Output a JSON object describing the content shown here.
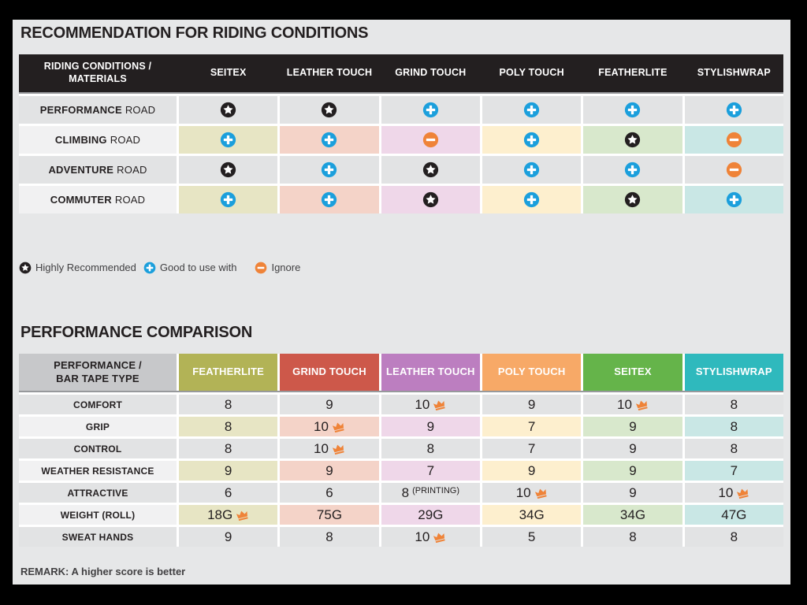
{
  "colors": {
    "page_bg": "#e6e7e8",
    "frame": "#000000",
    "header_black": "#231f20",
    "star": "#231f20",
    "plus": "#1b9fdc",
    "minus": "#ef8338",
    "crown": "#ef8338",
    "gray_row": "#e2e3e4",
    "label_light": "#f1f1f2",
    "header_gray": "#c7c8ca"
  },
  "section1": {
    "title": "RECOMMENDATION FOR RIDING CONDITIONS",
    "header_label": "RIDING CONDITIONS / MATERIALS",
    "columns": [
      {
        "label": "SEITEX",
        "tint": "#e7e5c4"
      },
      {
        "label": "LEATHER TOUCH",
        "tint": "#f4d3c8"
      },
      {
        "label": "GRIND TOUCH",
        "tint": "#efd7e9"
      },
      {
        "label": "POLY TOUCH",
        "tint": "#fdefce"
      },
      {
        "label": "FEATHERLITE",
        "tint": "#d8e8cc"
      },
      {
        "label": "STYLISHWRAP",
        "tint": "#c9e7e5"
      }
    ],
    "rows": [
      {
        "label_bold": "PERFORMANCE",
        "label_light": "ROAD",
        "cells": [
          "star",
          "star",
          "plus",
          "plus",
          "plus",
          "plus"
        ]
      },
      {
        "label_bold": "CLIMBING",
        "label_light": "ROAD",
        "cells": [
          "plus",
          "plus",
          "minus",
          "plus",
          "star",
          "minus"
        ]
      },
      {
        "label_bold": "ADVENTURE",
        "label_light": "ROAD",
        "cells": [
          "star",
          "plus",
          "star",
          "plus",
          "plus",
          "minus"
        ]
      },
      {
        "label_bold": "COMMUTER",
        "label_light": "ROAD",
        "cells": [
          "plus",
          "plus",
          "star",
          "plus",
          "star",
          "plus"
        ]
      }
    ],
    "legend": [
      {
        "icon": "star",
        "label": "Highly Recommended"
      },
      {
        "icon": "plus",
        "label": "Good to use with"
      },
      {
        "icon": "minus",
        "label": "Ignore"
      }
    ]
  },
  "section2": {
    "title": "PERFORMANCE COMPARISON",
    "header_label": "PERFORMANCE / BAR TAPE TYPE",
    "columns": [
      {
        "label": "FEATHERLITE",
        "color": "#b2b356",
        "tint": "#e7e5c4"
      },
      {
        "label": "GRIND TOUCH",
        "color": "#cd584a",
        "tint": "#f4d3c8"
      },
      {
        "label": "LEATHER TOUCH",
        "color": "#bc7ec0",
        "tint": "#efd7e9"
      },
      {
        "label": "POLY TOUCH",
        "color": "#f7a967",
        "tint": "#fdefce"
      },
      {
        "label": "SEITEX",
        "color": "#65b44a",
        "tint": "#d8e8cc"
      },
      {
        "label": "STYLISHWRAP",
        "color": "#2fb9bd",
        "tint": "#c9e7e5"
      }
    ],
    "rows": [
      {
        "label": "COMFORT",
        "values": [
          "8",
          "9",
          "10",
          "9",
          "10",
          "8"
        ],
        "crowns": [
          2,
          4
        ],
        "note_index": -1,
        "note": ""
      },
      {
        "label": "GRIP",
        "values": [
          "8",
          "10",
          "9",
          "7",
          "9",
          "8"
        ],
        "crowns": [
          1
        ],
        "note_index": -1,
        "note": ""
      },
      {
        "label": "CONTROL",
        "values": [
          "8",
          "10",
          "8",
          "7",
          "9",
          "8"
        ],
        "crowns": [
          1
        ],
        "note_index": -1,
        "note": ""
      },
      {
        "label": "WEATHER RESISTANCE",
        "values": [
          "9",
          "9",
          "7",
          "9",
          "9",
          "7"
        ],
        "crowns": [],
        "note_index": -1,
        "note": ""
      },
      {
        "label": "ATTRACTIVE",
        "values": [
          "6",
          "6",
          "8",
          "10",
          "9",
          "10"
        ],
        "crowns": [
          3,
          5
        ],
        "note_index": 2,
        "note": "(PRINTING)"
      },
      {
        "label": "WEIGHT (ROLL)",
        "values": [
          "18G",
          "75G",
          "29G",
          "34G",
          "34G",
          "47G"
        ],
        "crowns": [
          0
        ],
        "note_index": -1,
        "note": ""
      },
      {
        "label": "SWEAT HANDS",
        "values": [
          "9",
          "8",
          "10",
          "5",
          "8",
          "8"
        ],
        "crowns": [
          2
        ],
        "note_index": -1,
        "note": ""
      }
    ],
    "remark": "REMARK: A higher score is better"
  }
}
